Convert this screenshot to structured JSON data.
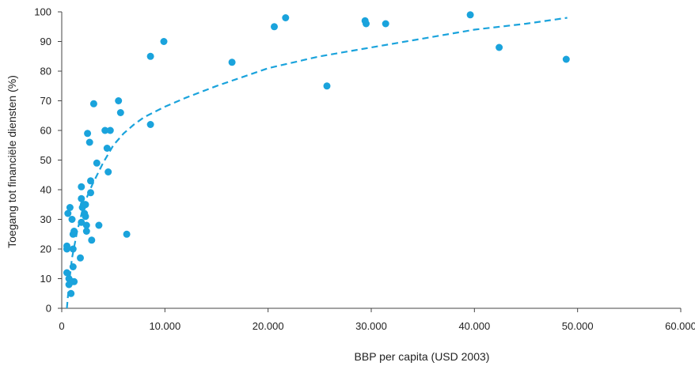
{
  "chart_data": {
    "type": "scatter",
    "title": "",
    "xlabel": "BBP per capita (USD 2003)",
    "ylabel": "Toegang tot financiële diensten (%)",
    "xlim": [
      0,
      60000
    ],
    "ylim": [
      0,
      100
    ],
    "x_ticks": [
      0,
      10000,
      20000,
      30000,
      40000,
      50000,
      60000
    ],
    "x_tick_labels": [
      "0",
      "10.000",
      "20.000",
      "30.000",
      "40.000",
      "50.000",
      "60.000"
    ],
    "y_ticks": [
      0,
      10,
      20,
      30,
      40,
      50,
      60,
      70,
      80,
      90,
      100
    ],
    "y_tick_labels": [
      "0",
      "10",
      "20",
      "30",
      "40",
      "50",
      "60",
      "70",
      "80",
      "90",
      "100"
    ],
    "grid": false,
    "legend": "none",
    "colors": {
      "points": "#1aa3dc",
      "trend": "#1aa3dc",
      "axis": "#444444",
      "text": "#222222"
    },
    "series": [
      {
        "kind": "scatter",
        "points": [
          [
            500,
            21
          ],
          [
            500,
            20
          ],
          [
            600,
            32
          ],
          [
            500,
            12
          ],
          [
            700,
            10
          ],
          [
            800,
            34
          ],
          [
            700,
            8
          ],
          [
            900,
            5
          ],
          [
            1000,
            9
          ],
          [
            1100,
            20
          ],
          [
            1100,
            14
          ],
          [
            1200,
            9
          ],
          [
            1000,
            30
          ],
          [
            1100,
            25
          ],
          [
            1200,
            26
          ],
          [
            1800,
            17
          ],
          [
            1900,
            41
          ],
          [
            1900,
            37
          ],
          [
            1900,
            29
          ],
          [
            2000,
            34
          ],
          [
            2100,
            35
          ],
          [
            2200,
            32
          ],
          [
            2300,
            35
          ],
          [
            2300,
            31
          ],
          [
            2400,
            28
          ],
          [
            2400,
            26
          ],
          [
            2500,
            59
          ],
          [
            2700,
            56
          ],
          [
            2800,
            39
          ],
          [
            2800,
            43
          ],
          [
            2900,
            23
          ],
          [
            3100,
            69
          ],
          [
            3400,
            49
          ],
          [
            3600,
            28
          ],
          [
            4200,
            60
          ],
          [
            4400,
            54
          ],
          [
            4500,
            46
          ],
          [
            4700,
            60
          ],
          [
            5500,
            70
          ],
          [
            5700,
            66
          ],
          [
            6300,
            25
          ],
          [
            8600,
            85
          ],
          [
            8600,
            62
          ],
          [
            9900,
            90
          ],
          [
            16500,
            83
          ],
          [
            20600,
            95
          ],
          [
            21700,
            98
          ],
          [
            25700,
            75
          ],
          [
            29400,
            97
          ],
          [
            29500,
            96
          ],
          [
            31400,
            96
          ],
          [
            39600,
            99
          ],
          [
            42400,
            88
          ],
          [
            48900,
            84
          ]
        ]
      },
      {
        "kind": "trendline",
        "style": "dashed",
        "points": [
          [
            500,
            0
          ],
          [
            700,
            8
          ],
          [
            1000,
            17
          ],
          [
            1500,
            26
          ],
          [
            2000,
            33
          ],
          [
            2500,
            38
          ],
          [
            3000,
            42
          ],
          [
            4000,
            49
          ],
          [
            5000,
            55
          ],
          [
            6000,
            59
          ],
          [
            7000,
            62
          ],
          [
            8000,
            64.5
          ],
          [
            10000,
            68
          ],
          [
            12000,
            71
          ],
          [
            15000,
            75
          ],
          [
            20000,
            81
          ],
          [
            25000,
            85
          ],
          [
            30000,
            88
          ],
          [
            35000,
            91
          ],
          [
            40000,
            94
          ],
          [
            45000,
            96
          ],
          [
            49000,
            98
          ]
        ]
      }
    ]
  }
}
